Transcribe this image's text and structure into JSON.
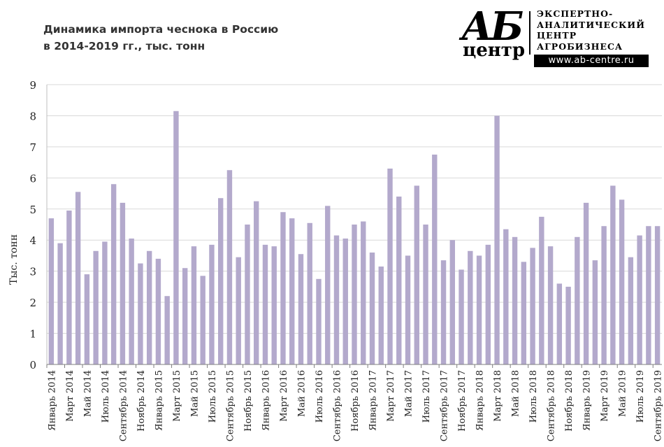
{
  "title": {
    "line1": "Динамика импорта чеснока в Россию",
    "line2": "в 2014-2019 гг., тыс. тонн"
  },
  "logo": {
    "mark": "АБ",
    "sub": "центр",
    "text": [
      "ЭКСПЕРТНО-",
      "АНАЛИТИЧЕСКИЙ",
      "ЦЕНТР",
      "АГРОБИЗНЕСА"
    ],
    "url": "www.ab-centre.ru"
  },
  "chart_data": {
    "type": "bar",
    "ylabel": "Тыс. тонн",
    "ylim": [
      0,
      9
    ],
    "yticks": [
      0,
      1,
      2,
      3,
      4,
      5,
      6,
      7,
      8,
      9
    ],
    "grid": true,
    "bar_color": "#b3a9cc",
    "categories": [
      "Январь 2014",
      "Февраль 2014",
      "Март 2014",
      "Апрель 2014",
      "Май 2014",
      "Июнь 2014",
      "Июль 2014",
      "Август 2014",
      "Сентябрь 2014",
      "Октябрь 2014",
      "Ноябрь 2014",
      "Декабрь 2014",
      "Январь 2015",
      "Февраль 2015",
      "Март 2015",
      "Апрель 2015",
      "Май 2015",
      "Июнь 2015",
      "Июль 2015",
      "Август 2015",
      "Сентябрь 2015",
      "Октябрь 2015",
      "Ноябрь 2015",
      "Декабрь 2015",
      "Январь 2016",
      "Февраль 2016",
      "Март 2016",
      "Апрель 2016",
      "Май 2016",
      "Июнь 2016",
      "Июль 2016",
      "Август 2016",
      "Сентябрь 2016",
      "Октябрь 2016",
      "Ноябрь 2016",
      "Декабрь 2016",
      "Январь 2017",
      "Февраль 2017",
      "Март 2017",
      "Апрель 2017",
      "Май 2017",
      "Июнь 2017",
      "Июль 2017",
      "Август 2017",
      "Сентябрь 2017",
      "Октябрь 2017",
      "Ноябрь 2017",
      "Декабрь 2017",
      "Январь 2018",
      "Февраль 2018",
      "Март 2018",
      "Апрель 2018",
      "Май 2018",
      "Июнь 2018",
      "Июль 2018",
      "Август 2018",
      "Сентябрь 2018",
      "Октябрь 2018",
      "Ноябрь 2018",
      "Декабрь 2018",
      "Январь 2019",
      "Февраль 2019",
      "Март 2019",
      "Апрель 2019",
      "Май 2019",
      "Июнь 2019",
      "Июль 2019",
      "Август 2019",
      "Сентябрь 2019"
    ],
    "visible_tick_labels": [
      "Январь 2014",
      "Март 2014",
      "Май 2014",
      "Июль 2014",
      "Сентябрь 2014",
      "Ноябрь 2014",
      "Январь 2015",
      "Март 2015",
      "Май 2015",
      "Июль 2015",
      "Сентябрь 2015",
      "Ноябрь 2015",
      "Январь 2016",
      "Март 2016",
      "Май 2016",
      "Июль 2016",
      "Сентябрь 2016",
      "Ноябрь 2016",
      "Январь 2017",
      "Март 2017",
      "Май 2017",
      "Июль 2017",
      "Сентябрь 2017",
      "Ноябрь 2017",
      "Январь 2018",
      "Март 2018",
      "Май 2018",
      "Июль 2018",
      "Сентябрь 2018",
      "Ноябрь 2018",
      "Январь 2019",
      "Март 2019",
      "Май 2019",
      "Июль 2019",
      "Сентябрь 2019"
    ],
    "values": [
      4.7,
      3.9,
      4.95,
      5.55,
      2.9,
      3.65,
      3.95,
      5.8,
      5.2,
      4.05,
      3.25,
      3.65,
      3.4,
      2.2,
      8.15,
      3.1,
      3.8,
      2.85,
      3.85,
      5.35,
      6.25,
      3.45,
      4.5,
      5.25,
      3.85,
      3.8,
      4.9,
      4.7,
      3.55,
      4.55,
      2.75,
      5.1,
      4.15,
      4.05,
      4.5,
      4.6,
      3.6,
      3.15,
      6.3,
      5.4,
      3.5,
      5.75,
      4.5,
      6.75,
      3.35,
      4.0,
      3.05,
      3.65,
      3.5,
      3.85,
      8.0,
      4.35,
      4.1,
      3.3,
      3.75,
      4.75,
      3.8,
      2.6,
      2.5,
      4.1,
      5.2,
      3.35,
      4.45,
      5.75,
      5.3,
      3.45,
      4.15,
      4.45,
      4.45
    ]
  }
}
